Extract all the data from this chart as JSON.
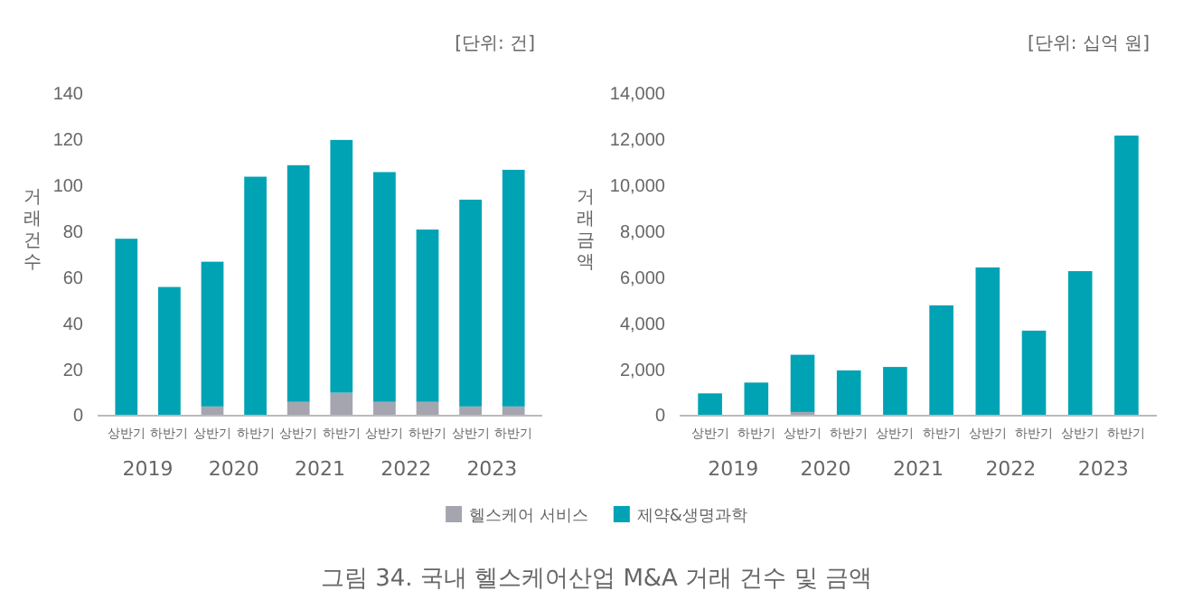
{
  "chart_data": [
    {
      "type": "bar",
      "title": "그림 34. 국내 헬스케어산업 M&A 거래 건수 및 금액",
      "subtitle": "[단위: 건]",
      "ylabel": "거래건수",
      "categories": [
        "상반기",
        "하반기",
        "상반기",
        "하반기",
        "상반기",
        "하반기",
        "상반기",
        "하반기",
        "상반기",
        "하반기"
      ],
      "stacked": true,
      "legend": "bottom",
      "ylim": [
        0,
        140
      ],
      "yticks": [
        0,
        20,
        40,
        60,
        80,
        100,
        120,
        140
      ],
      "series": [
        {
          "name": "헬스케어 서비스",
          "color": "#a5a5b0",
          "values": [
            0,
            null,
            4,
            null,
            6,
            10,
            6,
            6,
            4,
            4
          ]
        },
        {
          "name": "제약&생명과학",
          "color": "#00a3b4",
          "values": [
            77,
            56,
            63,
            104,
            103,
            110,
            100,
            75,
            90,
            103
          ]
        }
      ],
      "annotations": [
        "2019",
        "2020",
        "2021",
        "2022",
        "2023"
      ]
    },
    {
      "type": "bar",
      "subtitle": "[단위: 십억 원]",
      "ylabel": "거래금액",
      "categories": [
        "상반기",
        "하반기",
        "상반기",
        "하반기",
        "상반기",
        "하반기",
        "상반기",
        "하반기",
        "상반기",
        "하반기"
      ],
      "stacked": true,
      "ylim": [
        0,
        14000
      ],
      "yticks": [
        0,
        {
          "value": 2000,
          "label": "2,000"
        },
        {
          "value": 4000,
          "label": "4,000"
        },
        {
          "value": 6000,
          "label": "6,000"
        },
        {
          "value": 8000,
          "label": "8,000"
        },
        {
          "value": 10000,
          "label": "10,000"
        },
        {
          "value": 12000,
          "label": "12,000"
        },
        {
          "value": 14000,
          "label": "14,000"
        }
      ],
      "series": [
        {
          "color": "#a5a5b0",
          "values": [
            0,
            0,
            160,
            0,
            0,
            null,
            0,
            null,
            0,
            0
          ]
        },
        {
          "color": "#00a3b4",
          "values": [
            970,
            1440,
            2490,
            1970,
            2120,
            4800,
            6450,
            3700,
            6290,
            12190
          ]
        }
      ],
      "annotations": [
        "2019",
        "2020",
        "2021",
        "2022",
        "2023"
      ]
    }
  ]
}
